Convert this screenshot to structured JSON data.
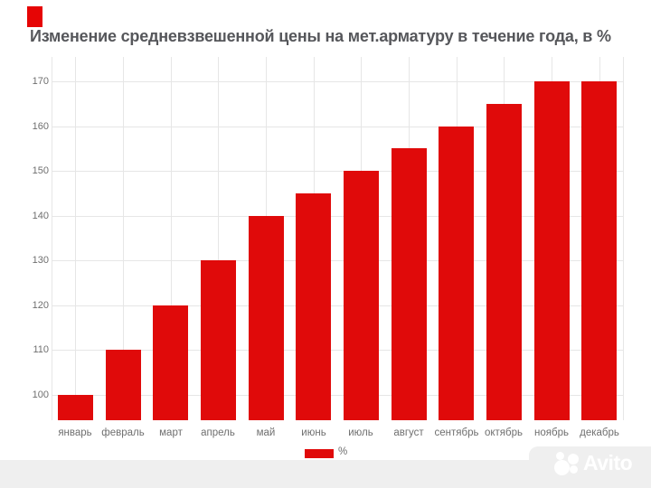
{
  "title": "Изменение средневзвешенной цены на мет.арматуру в течение года, в %",
  "chart_data": {
    "type": "bar",
    "title": "Изменение средневзвешенной цены на мет.арматуру в течение года, в %",
    "categories": [
      "январь",
      "февраль",
      "март",
      "апрель",
      "май",
      "июнь",
      "июль",
      "август",
      "сентябрь",
      "октябрь",
      "ноябрь",
      "декабрь"
    ],
    "values": [
      100,
      110,
      120,
      130,
      140,
      145,
      150,
      155,
      160,
      165,
      170,
      170
    ],
    "series_name": "%",
    "xlabel": "",
    "ylabel": "",
    "yticks": [
      100,
      110,
      120,
      130,
      140,
      150,
      160,
      170
    ],
    "ylim": [
      95,
      175
    ],
    "grid": "on",
    "legend_position": "bottom"
  },
  "legend": {
    "label": "%"
  },
  "watermark": {
    "text": "Avito"
  },
  "colors": {
    "bar": "#e00a0a",
    "accent_mark": "#e60505",
    "title": "#56575b",
    "axis_label": "#6f6f6f",
    "gridline": "#e6e6e6",
    "footer_bg": "#efefef",
    "watermark": "#ffffff"
  }
}
